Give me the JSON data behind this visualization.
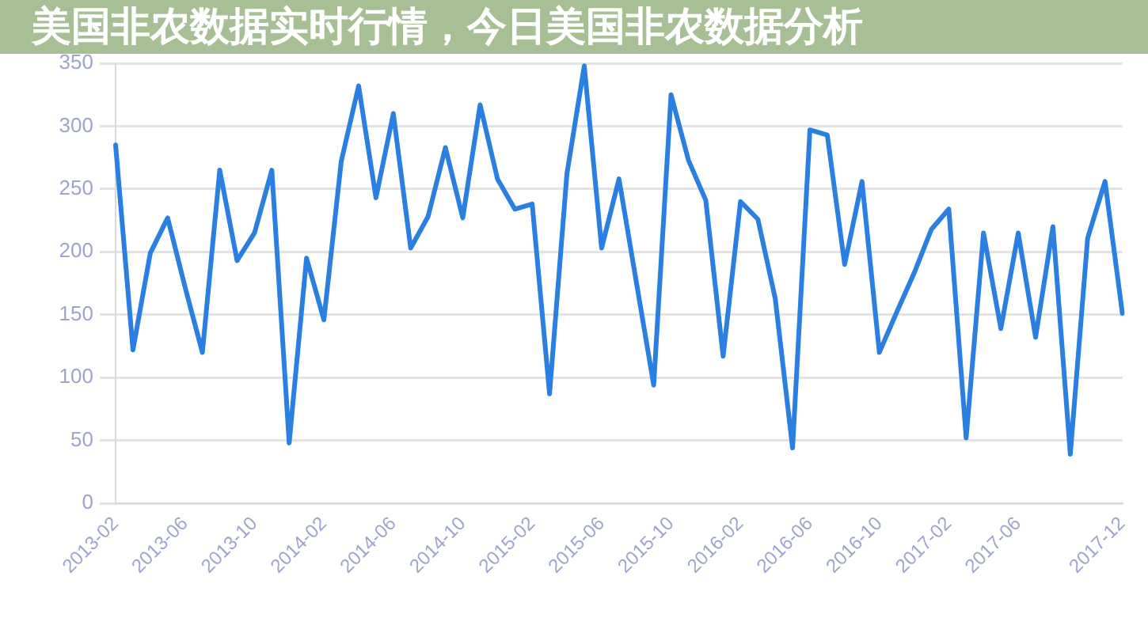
{
  "chart_data": {
    "type": "line",
    "title": "美国非农数据实时行情，今日美国非农数据分析",
    "categories": [
      "2013-02",
      null,
      null,
      null,
      "2013-06",
      null,
      null,
      null,
      "2013-10",
      null,
      null,
      null,
      "2014-02",
      null,
      null,
      null,
      "2014-06",
      null,
      null,
      null,
      "2014-10",
      null,
      null,
      null,
      "2015-02",
      null,
      null,
      null,
      "2015-06",
      null,
      null,
      null,
      "2015-10",
      null,
      null,
      null,
      "2016-02",
      null,
      null,
      null,
      "2016-06",
      null,
      null,
      null,
      "2016-10",
      null,
      null,
      null,
      "2017-02",
      null,
      null,
      null,
      "2017-06",
      null,
      null,
      null,
      null,
      null,
      "2017-12"
    ],
    "series": [
      {
        "color": "#2b7fe0",
        "values": [
          285,
          122,
          199,
          227,
          172,
          120,
          265,
          193,
          215,
          265,
          48,
          195,
          146,
          272,
          332,
          243,
          310,
          203,
          228,
          283,
          227,
          317,
          258,
          234,
          238,
          87,
          262,
          348,
          203,
          258,
          176,
          94,
          325,
          273,
          241,
          117,
          240,
          226,
          163,
          44,
          297,
          293,
          190,
          256,
          120,
          152,
          183,
          218,
          234,
          52,
          215,
          139,
          215,
          132,
          220,
          39,
          211,
          256,
          151
        ]
      }
    ],
    "ylim": [
      0,
      350
    ],
    "yticks": [
      0,
      50,
      100,
      150,
      200,
      250,
      300,
      350
    ],
    "grid": "y"
  }
}
